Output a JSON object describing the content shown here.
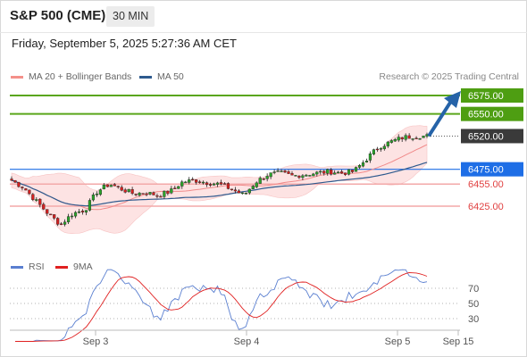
{
  "header": {
    "title": "S&P 500 (CME)",
    "timeframe": "30 MIN",
    "datetime": "Friday, September 5, 2025 5:27:36 AM CET"
  },
  "legend": {
    "items": [
      {
        "label": "MA 20 + Bollinger Bands",
        "color": "#f4908a"
      },
      {
        "label": "MA 50",
        "color": "#2e5a8e"
      }
    ],
    "credit": "Research © 2025 Trading Central"
  },
  "rsi_legend": {
    "items": [
      {
        "label": "RSI",
        "color": "#5a7fd0"
      },
      {
        "label": "9MA",
        "color": "#e02020"
      }
    ]
  },
  "chart_data": [
    {
      "type": "candlestick",
      "title": "S&P 500 (CME)",
      "x_labels": [
        "Sep 3",
        "Sep 4",
        "Sep 5",
        "Sep 15"
      ],
      "levels": [
        {
          "value": 6575.0,
          "label": "6575.00",
          "kind": "target",
          "color": "#5aa61a"
        },
        {
          "value": 6550.0,
          "label": "6550.00",
          "kind": "target",
          "color": "#5aa61a"
        },
        {
          "value": 6520.0,
          "label": "6520.00",
          "kind": "last",
          "color": "#3a3a3a"
        },
        {
          "value": 6475.0,
          "label": "6475.00",
          "kind": "pivot",
          "color": "#1e6ee6"
        },
        {
          "value": 6455.0,
          "label": "6455.00",
          "kind": "support",
          "color": "#f0a8a8"
        },
        {
          "value": 6425.0,
          "label": "6425.00",
          "kind": "support",
          "color": "#f0a8a8"
        }
      ],
      "close_path": [
        6460,
        6450,
        6432,
        6415,
        6400,
        6415,
        6420,
        6445,
        6455,
        6448,
        6442,
        6443,
        6440,
        6445,
        6458,
        6460,
        6457,
        6455,
        6448,
        6440,
        6458,
        6468,
        6470,
        6466,
        6468,
        6470,
        6472,
        6470,
        6472,
        6488,
        6505,
        6512,
        6518,
        6520,
        6520
      ]
    },
    {
      "type": "line",
      "title": "RSI",
      "y_ticks": [
        70,
        50,
        30
      ],
      "series": [
        {
          "name": "RSI"
        },
        {
          "name": "9MA"
        }
      ]
    }
  ]
}
